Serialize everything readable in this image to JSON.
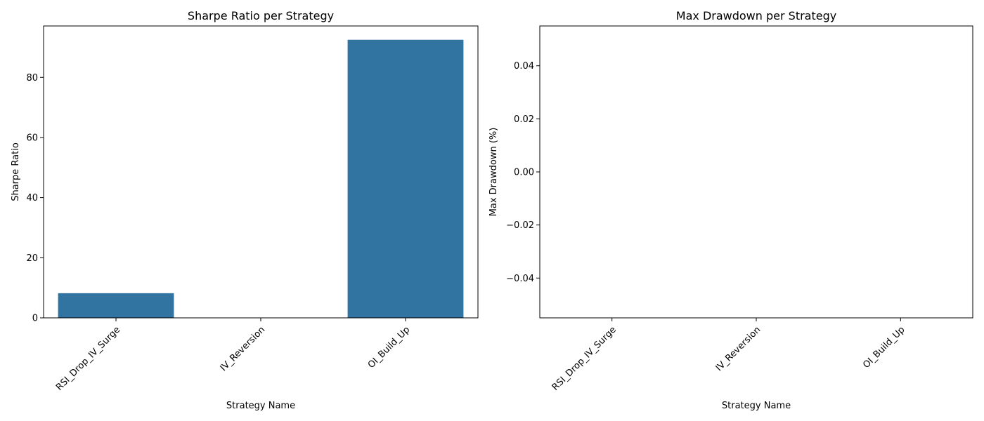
{
  "chart_data": [
    {
      "type": "bar",
      "title": "Sharpe Ratio per Strategy",
      "xlabel": "Strategy Name",
      "ylabel": "Sharpe Ratio",
      "categories": [
        "RSI_Drop_IV_Surge",
        "IV_Reversion",
        "OI_Build_Up"
      ],
      "values": [
        8.2,
        0,
        92.5
      ],
      "ylim": [
        0,
        97.1
      ],
      "yticks": [
        0,
        20,
        40,
        60,
        80
      ],
      "ytick_labels": [
        "0",
        "20",
        "40",
        "60",
        "80"
      ],
      "bar_color": "#3274a1",
      "grid": false
    },
    {
      "type": "bar",
      "title": "Max Drawdown per Strategy",
      "xlabel": "Strategy Name",
      "ylabel": "Max Drawdown (%)",
      "categories": [
        "RSI_Drop_IV_Surge",
        "IV_Reversion",
        "OI_Build_Up"
      ],
      "values": [
        0,
        0,
        0
      ],
      "ylim": [
        -0.055,
        0.055
      ],
      "yticks": [
        -0.04,
        -0.02,
        0.0,
        0.02,
        0.04
      ],
      "ytick_labels": [
        "−0.04",
        "−0.02",
        "0.00",
        "0.02",
        "0.04"
      ],
      "bar_color": "#3274a1",
      "grid": false
    }
  ]
}
